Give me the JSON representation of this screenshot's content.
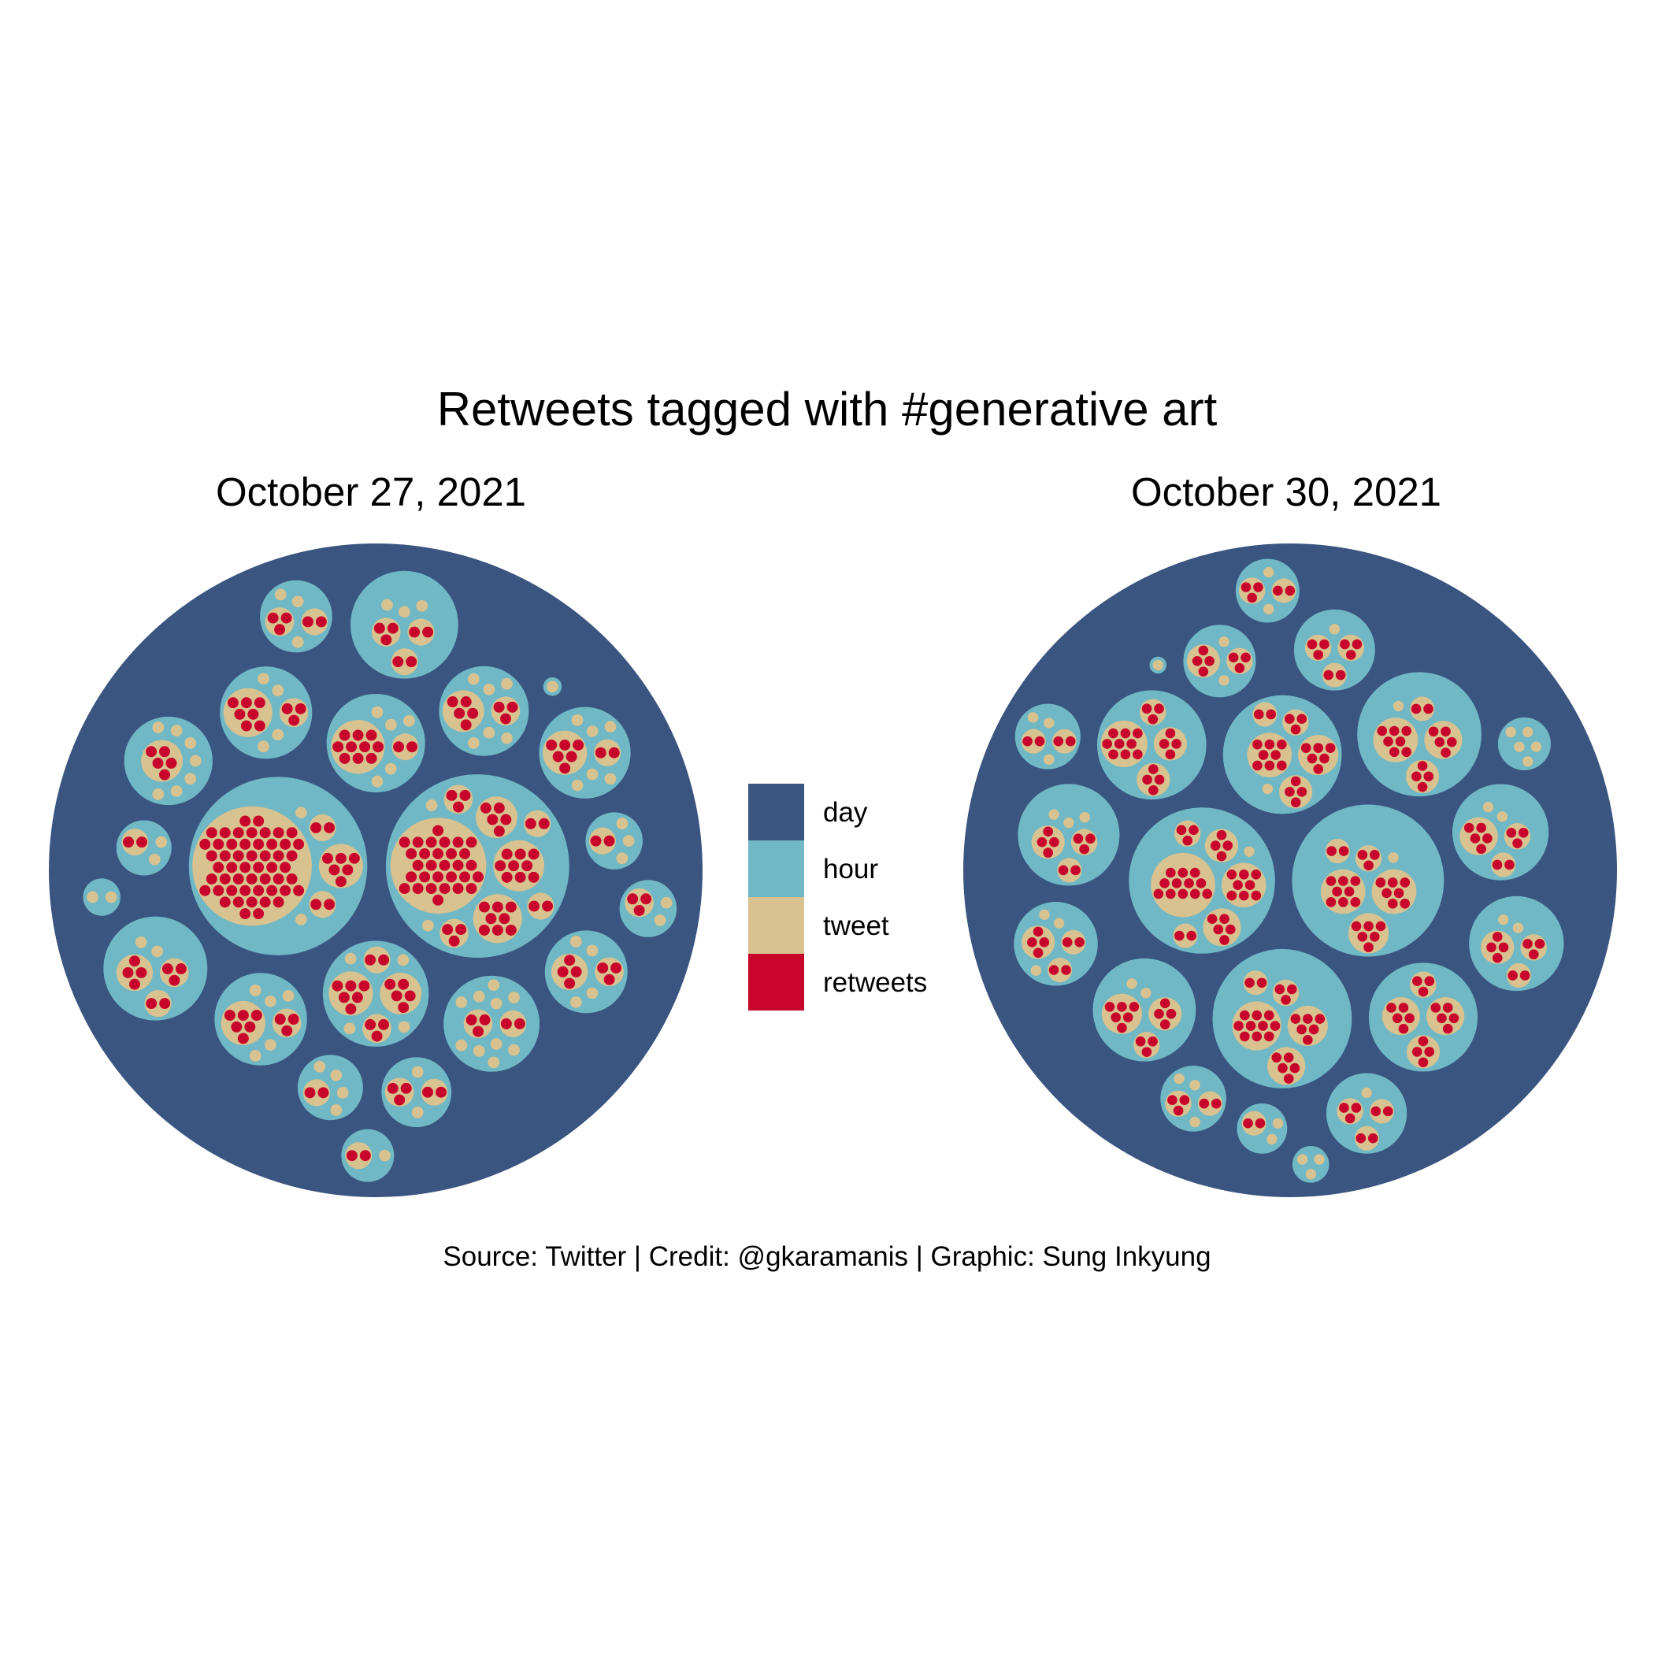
{
  "chart_data": {
    "type": "circle-packing",
    "title": "Retweets tagged with #generative art",
    "caption": "Source: Twitter | Credit: @gkaramanis | Graphic: Sung Inkyung",
    "legend": {
      "position": "center",
      "items": [
        {
          "label": "day",
          "color": "#3A5580"
        },
        {
          "label": "hour",
          "color": "#70B8C5"
        },
        {
          "label": "tweet",
          "color": "#D8C290"
        },
        {
          "label": "retweets",
          "color": "#C8062C"
        }
      ]
    },
    "panels": [
      {
        "date": "October 27, 2021",
        "hours": [
          {
            "tweets": [
              6,
              5,
              3,
              2,
              1,
              1,
              1,
              1
            ]
          },
          {
            "tweets": [
              52,
              6,
              2,
              2,
              1,
              1
            ]
          },
          {
            "tweets": [
              30,
              9,
              8,
              5,
              3,
              3,
              2,
              2,
              1,
              1
            ]
          },
          {
            "tweets": [
              3,
              2,
              1,
              1,
              1,
              1,
              1,
              1,
              1,
              1,
              1,
              1
            ]
          },
          {
            "tweets": [
              5,
              3,
              1,
              1,
              1,
              1,
              1,
              1
            ]
          },
          {
            "tweets": [
              4,
              3,
              1,
              1,
              1,
              1
            ]
          },
          {
            "tweets": [
              5,
              1,
              1,
              1,
              1,
              1,
              1,
              1
            ]
          },
          {
            "tweets": [
              7,
              3,
              1,
              1,
              1,
              1
            ]
          },
          {
            "tweets": [
              3,
              2,
              2,
              1,
              1,
              1
            ]
          },
          {
            "tweets": [
              10,
              2,
              1,
              1,
              1,
              1,
              1
            ]
          },
          {
            "tweets": [
              6,
              3,
              1,
              1,
              1,
              1,
              1
            ]
          },
          {
            "tweets": [
              6,
              2,
              1,
              1,
              1,
              1,
              1,
              1
            ]
          },
          {
            "tweets": [
              4,
              3,
              2,
              1,
              1
            ]
          },
          {
            "tweets": [
              3,
              2,
              1,
              1,
              1
            ]
          },
          {
            "tweets": [
              3,
              2,
              1,
              1
            ]
          },
          {
            "tweets": [
              2,
              1,
              1,
              1,
              1
            ]
          },
          {
            "tweets": [
              2,
              1,
              1,
              1
            ]
          },
          {
            "tweets": [
              3,
              1,
              1
            ]
          },
          {
            "tweets": [
              2,
              1,
              1
            ]
          },
          {
            "tweets": [
              2,
              1
            ]
          },
          {
            "tweets": [
              1,
              1
            ]
          },
          {
            "tweets": [
              1
            ]
          }
        ]
      },
      {
        "date": "October 30, 2021",
        "hours": [
          {
            "tweets": [
              12,
              8,
              5,
              4,
              3,
              2,
              1
            ]
          },
          {
            "tweets": [
              8,
              7,
              6,
              3,
              2,
              1
            ]
          },
          {
            "tweets": [
              9,
              4,
              4,
              3
            ]
          },
          {
            "tweets": [
              10,
              6,
              5,
              3,
              2
            ]
          },
          {
            "tweets": [
              8,
              6,
              4,
              3,
              2,
              1
            ]
          },
          {
            "tweets": [
              5,
              5,
              4,
              3
            ]
          },
          {
            "tweets": [
              7,
              5,
              4,
              2,
              1
            ]
          },
          {
            "tweets": [
              6,
              4,
              3,
              1,
              1
            ]
          },
          {
            "tweets": [
              4,
              3,
              2,
              1,
              1
            ]
          },
          {
            "tweets": [
              5,
              3,
              2,
              1,
              1
            ]
          },
          {
            "tweets": [
              4,
              3,
              1,
              1
            ]
          },
          {
            "tweets": [
              4,
              3,
              2,
              1,
              1,
              1
            ]
          },
          {
            "tweets": [
              4,
              2,
              2,
              1,
              1,
              1
            ]
          },
          {
            "tweets": [
              3,
              3,
              2,
              1
            ]
          },
          {
            "tweets": [
              3,
              2,
              2,
              1
            ]
          },
          {
            "tweets": [
              3,
              2,
              1,
              1,
              1
            ]
          },
          {
            "tweets": [
              3,
              2,
              1,
              1
            ]
          },
          {
            "tweets": [
              2,
              2,
              1,
              1,
              1
            ]
          },
          {
            "tweets": [
              1,
              1,
              1,
              1,
              1
            ]
          },
          {
            "tweets": [
              2,
              1,
              1
            ]
          },
          {
            "tweets": [
              1,
              1,
              1
            ]
          },
          {
            "tweets": [
              1
            ]
          }
        ]
      }
    ]
  }
}
